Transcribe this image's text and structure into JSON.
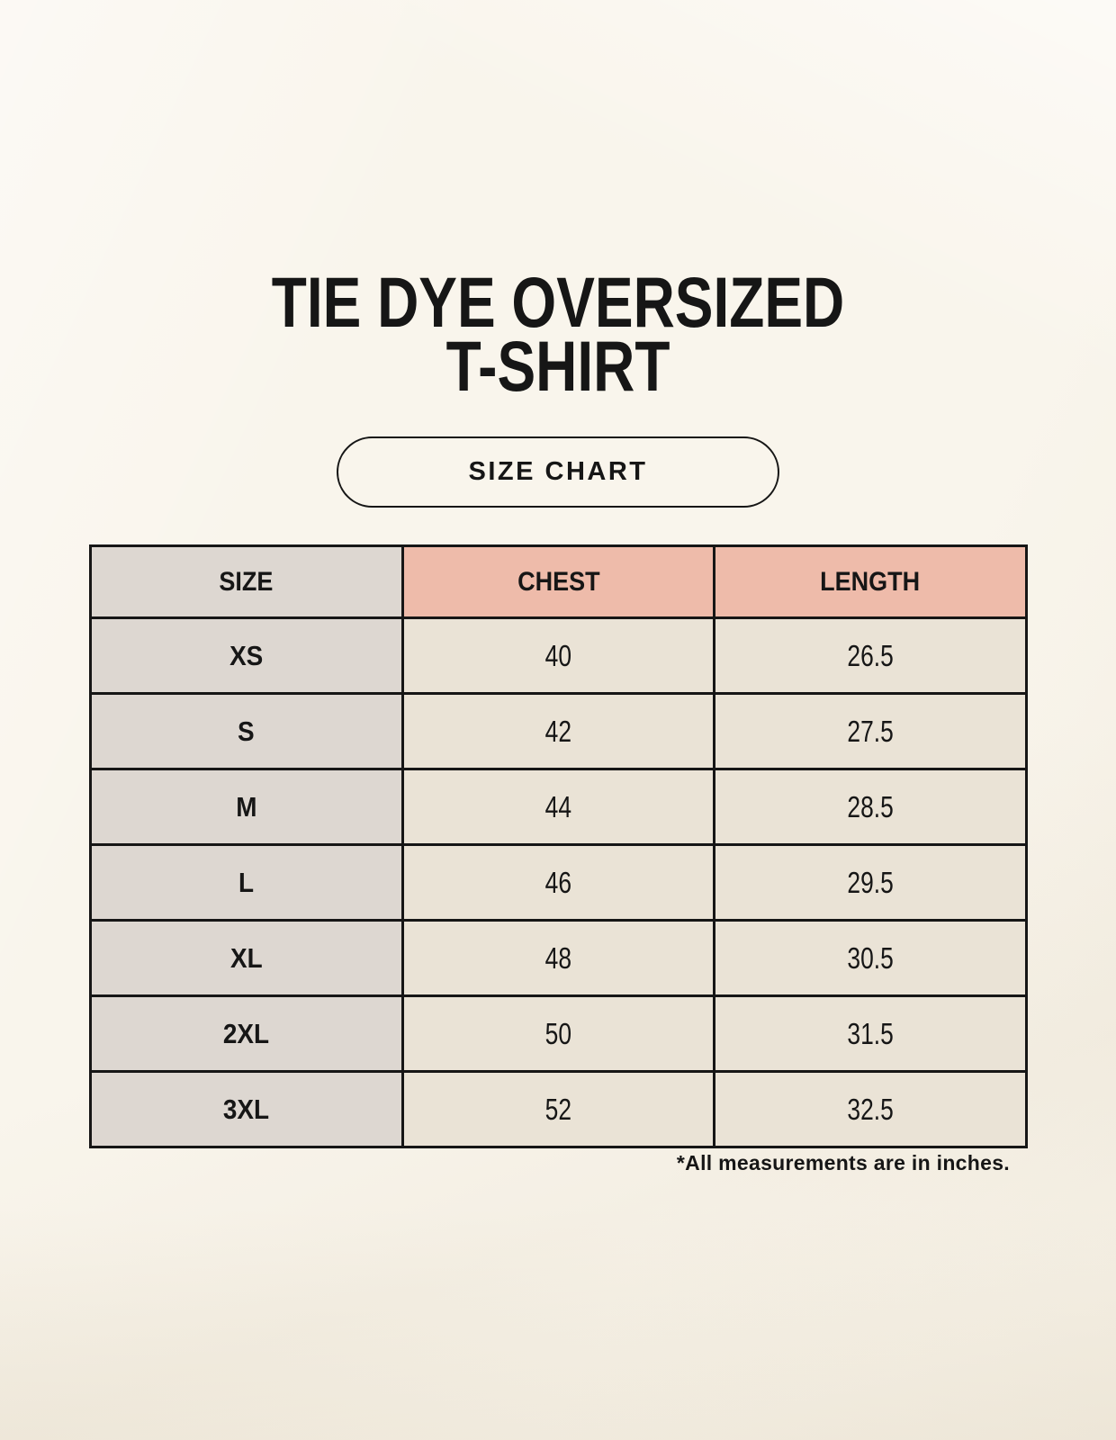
{
  "page": {
    "title_line1": "TIE DYE OVERSIZED",
    "title_line2": "T-SHIRT",
    "badge_label": "SIZE CHART",
    "footnote": "*All measurements are in inches."
  },
  "table": {
    "columns": [
      "SIZE",
      "CHEST",
      "LENGTH"
    ],
    "rows": [
      {
        "size": "XS",
        "chest": "40",
        "length": "26.5"
      },
      {
        "size": "S",
        "chest": "42",
        "length": "27.5"
      },
      {
        "size": "M",
        "chest": "44",
        "length": "28.5"
      },
      {
        "size": "L",
        "chest": "46",
        "length": "29.5"
      },
      {
        "size": "XL",
        "chest": "48",
        "length": "30.5"
      },
      {
        "size": "2XL",
        "chest": "50",
        "length": "31.5"
      },
      {
        "size": "3XL",
        "chest": "52",
        "length": "32.5"
      }
    ]
  },
  "colors": {
    "background": "#f9f5ec",
    "border": "#161616",
    "text": "#161616",
    "size_col_bg": "#ddd7d1",
    "measure_header_bg": "#eebbaa",
    "value_cell_bg": "#eae3d6"
  }
}
